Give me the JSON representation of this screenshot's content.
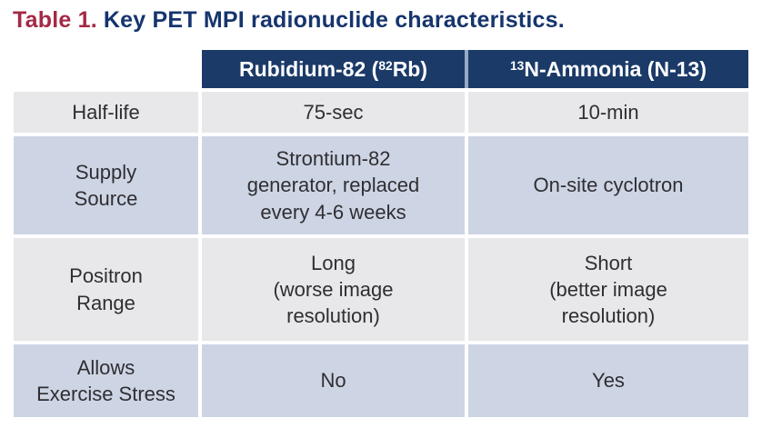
{
  "title": {
    "prefix": "Table 1.",
    "text": "Key PET MPI radionuclide characteristics."
  },
  "colors": {
    "title_red": "#a42945",
    "title_navy": "#16356d",
    "header_bg": "#1b3a68",
    "header_text": "#ffffff",
    "row_gray": "#e8e7e9",
    "row_blue": "#cdd5e4",
    "body_text": "#2f2e33",
    "header_divider": "#96aac6"
  },
  "table": {
    "header": {
      "label_col": "",
      "rb82": {
        "pre": "Rubidium-82 (",
        "sup": "82",
        "post": "Rb)"
      },
      "n13": {
        "pre": "",
        "sup": "13",
        "post": "N-Ammonia (N-13)"
      }
    },
    "rows": [
      {
        "label": "Half-life",
        "rb82": "75-sec",
        "n13": "10-min"
      },
      {
        "label": "Supply\nSource",
        "rb82": "Strontium-82\ngenerator, replaced\nevery 4-6 weeks",
        "n13": "On-site cyclotron"
      },
      {
        "label": "Positron\nRange",
        "rb82": "Long\n(worse image\nresolution)",
        "n13": "Short\n(better image\nresolution)"
      },
      {
        "label": "Allows\nExercise Stress",
        "rb82": "No",
        "n13": "Yes"
      }
    ]
  }
}
